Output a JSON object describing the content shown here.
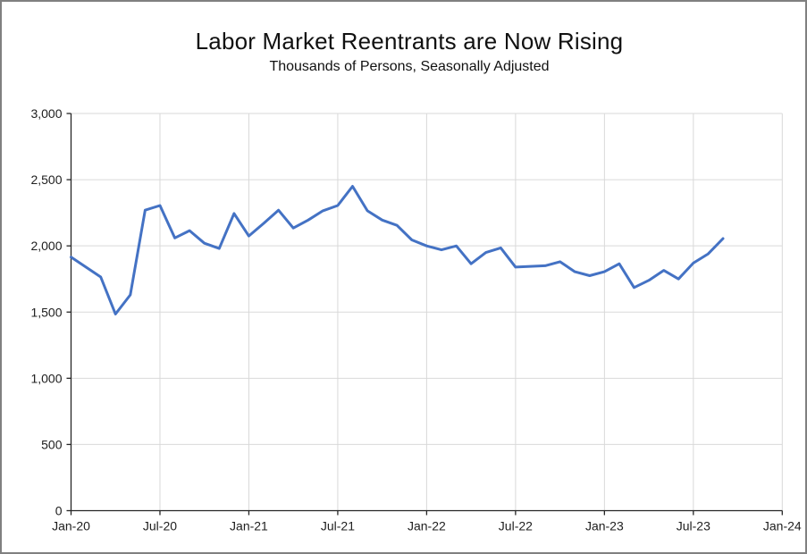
{
  "chart": {
    "title": "Labor Market Reentrants are Now Rising",
    "subtitle": "Thousands of Persons, Seasonally Adjusted"
  },
  "chart_data": {
    "type": "line",
    "title": "Labor Market Reentrants are Now Rising",
    "subtitle": "Thousands of Persons, Seasonally Adjusted",
    "series_name": "Labor market reentrants, thousands of persons, seasonally adjusted",
    "x": [
      "Jan-20",
      "Feb-20",
      "Mar-20",
      "Apr-20",
      "May-20",
      "Jun-20",
      "Jul-20",
      "Aug-20",
      "Sep-20",
      "Oct-20",
      "Nov-20",
      "Dec-20",
      "Jan-21",
      "Feb-21",
      "Mar-21",
      "Apr-21",
      "May-21",
      "Jun-21",
      "Jul-21",
      "Aug-21",
      "Sep-21",
      "Oct-21",
      "Nov-21",
      "Dec-21",
      "Jan-22",
      "Feb-22",
      "Mar-22",
      "Apr-22",
      "May-22",
      "Jun-22",
      "Jul-22",
      "Aug-22",
      "Sep-22",
      "Oct-22",
      "Nov-22",
      "Dec-22",
      "Jan-23",
      "Feb-23",
      "Mar-23",
      "Apr-23",
      "May-23",
      "Jun-23",
      "Jul-23",
      "Aug-23",
      "Sep-23"
    ],
    "values": [
      1915,
      1840,
      1765,
      1485,
      1630,
      2270,
      2305,
      2060,
      2115,
      2020,
      1980,
      2245,
      2075,
      2170,
      2270,
      2135,
      2195,
      2265,
      2305,
      2450,
      2265,
      2195,
      2155,
      2045,
      2000,
      1970,
      2000,
      1865,
      1950,
      1985,
      1840,
      1845,
      1850,
      1880,
      1805,
      1775,
      1805,
      1865,
      1685,
      1740,
      1815,
      1750,
      1870,
      1940,
      2055
    ],
    "xlabel": "",
    "ylabel": "",
    "ylim": [
      0,
      3000
    ],
    "y_tick_step": 500,
    "y_tick_labels": [
      "0",
      "500",
      "1,000",
      "1,500",
      "2,000",
      "2,500",
      "3,000"
    ],
    "x_tick_labels": [
      "Jan-20",
      "Jul-20",
      "Jan-21",
      "Jul-21",
      "Jan-22",
      "Jul-22",
      "Jan-23",
      "Jul-23",
      "Jan-24"
    ],
    "x_tick_interval_months": 6,
    "x_axis_total_months": 48,
    "grid": true,
    "legend": "none",
    "line_color": "#4472C4",
    "gridline_color": "#D9D9D9",
    "axis_color": "#262626"
  }
}
